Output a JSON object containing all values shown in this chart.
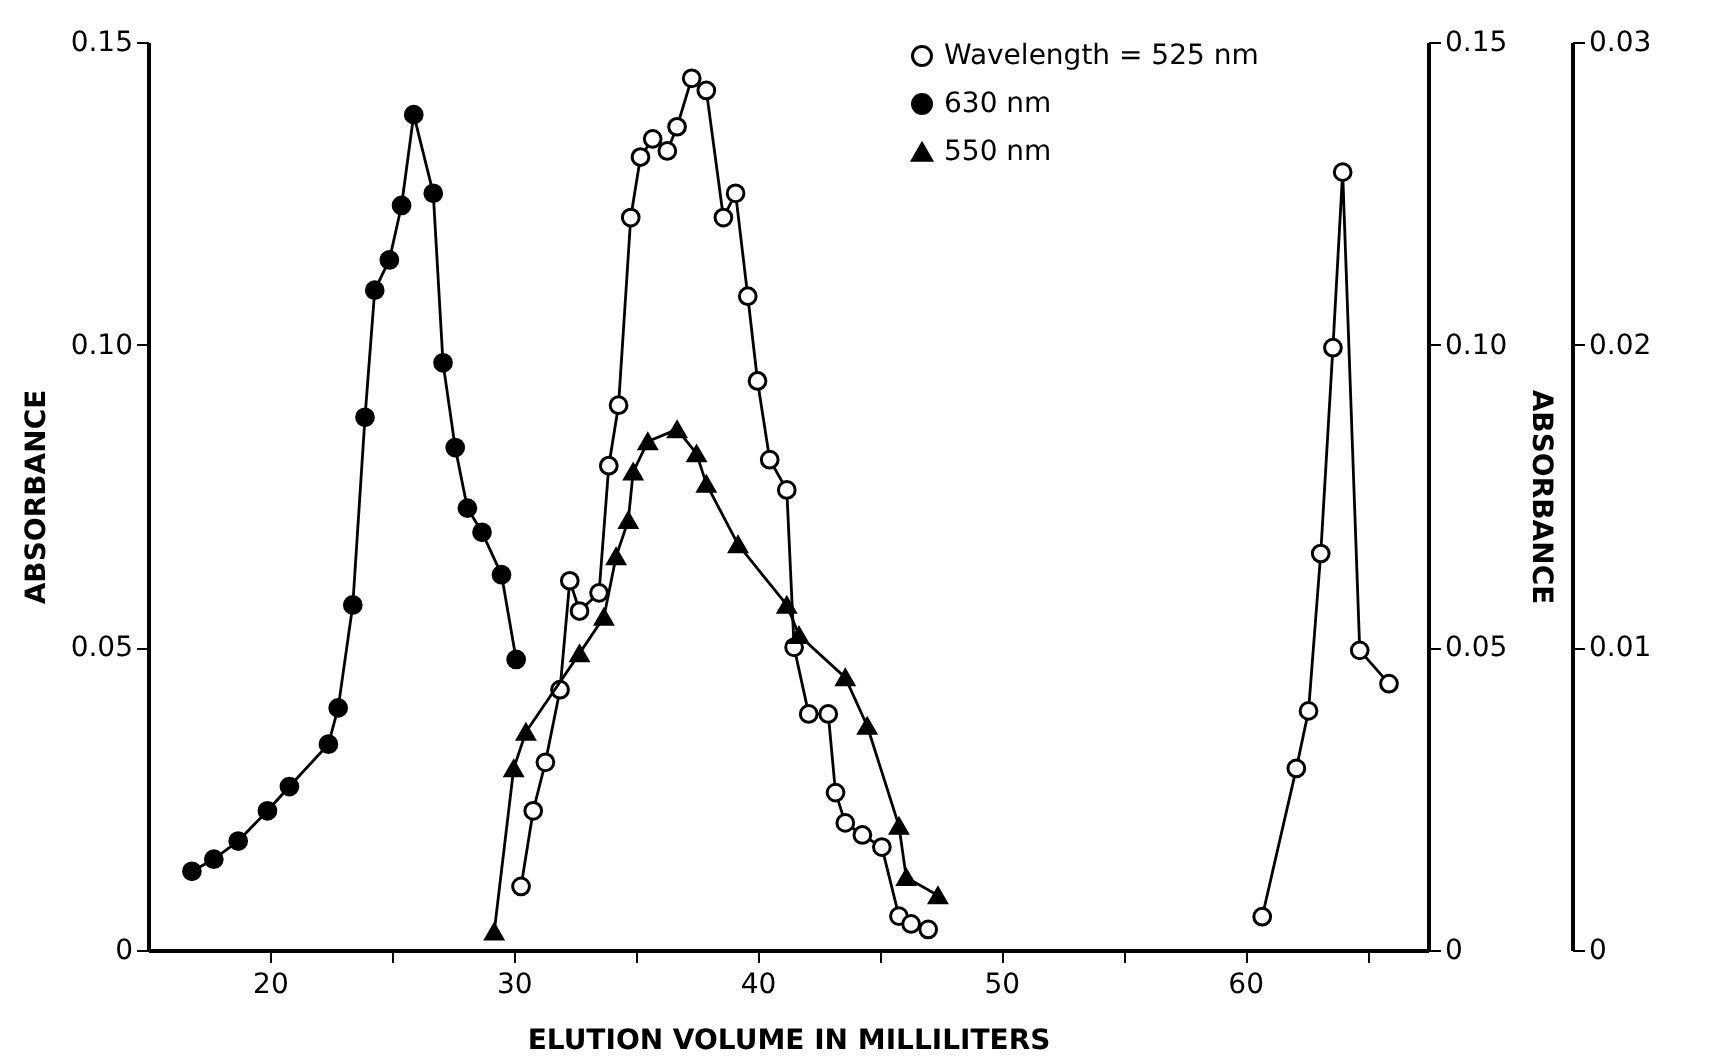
{
  "chart_data": {
    "type": "line",
    "xlabel": "ELUTION VOLUME IN MILLILITERS",
    "ylabel": "ABSORBANCE",
    "y2label": "ABSORBANCE",
    "legend": "top right",
    "grid": false,
    "xlim": [
      15,
      67.5
    ],
    "xticks": [
      20,
      {
        "value": 25,
        "label": null
      },
      30,
      {
        "value": 35,
        "label": null
      },
      40,
      {
        "value": 45,
        "label": null
      },
      50,
      {
        "value": 55,
        "label": null
      },
      60,
      {
        "value": 65,
        "label": null
      }
    ],
    "ylim": [
      0,
      0.15
    ],
    "yticks": [
      0,
      0.05,
      {
        "value": 0.1,
        "label": "0.10"
      },
      0.15
    ],
    "y2lim": [
      0,
      0.15
    ],
    "y2ticks": [
      0,
      0.05,
      {
        "value": 0.1,
        "label": "0.10"
      },
      0.15
    ],
    "y3lim": [
      0,
      0.03
    ],
    "y3ticks": [
      0,
      0.01,
      0.02,
      0.03
    ],
    "series": [
      {
        "name": "Wavelength = 525 nm",
        "color": "#000000",
        "marker": "circle",
        "x": [
          30.3,
          30.8,
          31.3,
          31.9,
          32.3,
          32.7,
          33.5,
          33.9,
          34.3,
          34.8,
          35.2,
          35.7,
          36.3,
          36.7,
          37.3,
          37.9,
          38.6,
          39.1,
          39.6,
          40.0,
          40.5,
          41.2,
          41.5,
          42.1,
          42.9,
          43.2,
          43.6,
          44.3,
          45.1,
          45.8,
          46.3,
          47.0
        ],
        "values": [
          0.0105,
          0.023,
          0.031,
          0.043,
          0.061,
          0.056,
          0.059,
          0.08,
          0.09,
          0.121,
          0.131,
          0.134,
          0.132,
          0.136,
          0.144,
          0.142,
          0.121,
          0.125,
          0.108,
          0.094,
          0.081,
          0.076,
          0.05,
          0.039,
          0.039,
          0.026,
          0.021,
          0.019,
          0.017,
          0.0056,
          0.0043,
          0.0034
        ]
      },
      {
        "name": "630 nm",
        "color": "#000000",
        "marker": "circle",
        "x": [
          16.8,
          17.7,
          18.7,
          19.9,
          20.8,
          22.4,
          22.8,
          23.4,
          23.9,
          24.3,
          24.9,
          25.4,
          25.9,
          26.7,
          27.1,
          27.6,
          28.1,
          28.7,
          29.5,
          30.1
        ],
        "values": [
          0.013,
          0.015,
          0.018,
          0.023,
          0.027,
          0.034,
          0.04,
          0.057,
          0.088,
          0.109,
          0.114,
          0.123,
          0.138,
          0.125,
          0.097,
          0.083,
          0.073,
          0.069,
          0.062,
          0.048
        ]
      },
      {
        "name": "550 nm",
        "color": "#000000",
        "marker": "triangle",
        "x": [
          29.2,
          30.0,
          30.5,
          32.7,
          33.7,
          34.2,
          34.7,
          34.9,
          35.5,
          36.7,
          37.5,
          37.9,
          39.2,
          41.2,
          41.7,
          43.6,
          44.5,
          45.8,
          46.1,
          47.4
        ],
        "values": [
          0.003,
          0.03,
          0.036,
          0.049,
          0.055,
          0.065,
          0.071,
          0.079,
          0.084,
          0.086,
          0.082,
          0.077,
          0.067,
          0.057,
          0.052,
          0.045,
          0.037,
          0.0205,
          0.012,
          0.009
        ]
      },
      {
        "color": "#000000",
        "marker": "circle",
        "axis": "y3",
        "x": [
          60.7,
          62.1,
          62.6,
          63.1,
          63.6,
          64.0,
          64.7,
          65.9
        ],
        "values": [
          0.0011,
          0.006,
          0.0079,
          0.0131,
          0.0199,
          0.0257,
          0.0099,
          0.0088
        ]
      }
    ]
  }
}
